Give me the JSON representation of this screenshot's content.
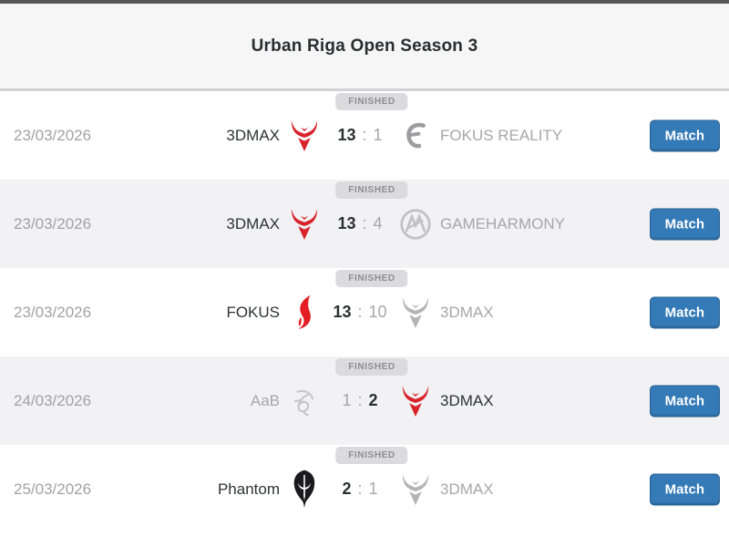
{
  "header": {
    "title": "Urban Riga Open Season 3"
  },
  "labels": {
    "finished": "FINISHED",
    "match": "Match"
  },
  "colors": {
    "accent_blue": "#337ab7",
    "accent_blue_border": "#286090",
    "winner_text": "#2f3136",
    "loser_text": "#a7a7a9",
    "badge_bg": "#dbdbdd",
    "badge_text": "#8e8e91",
    "devil_red": "#d9232b",
    "logo_gray": "#b4b4b6",
    "header_bg": "#f6f6f7",
    "alt_row_bg": "#f2f2f4"
  },
  "rows": [
    {
      "date": "23/03/2026",
      "team1": {
        "name": "3DMAX",
        "icon": "devil-red",
        "winner": true
      },
      "score1": "13",
      "score2": "1",
      "team2": {
        "name": "FOKUS REALITY",
        "icon": "fokus-gray",
        "winner": false
      },
      "status": "FINISHED"
    },
    {
      "date": "23/03/2026",
      "team1": {
        "name": "3DMAX",
        "icon": "devil-red",
        "winner": true
      },
      "score1": "13",
      "score2": "4",
      "team2": {
        "name": "GAMEHARMONY",
        "icon": "gameharmony-gray",
        "winner": false
      },
      "status": "FINISHED"
    },
    {
      "date": "23/03/2026",
      "team1": {
        "name": "FOKUS",
        "icon": "fokus-red",
        "winner": true
      },
      "score1": "13",
      "score2": "10",
      "team2": {
        "name": "3DMAX",
        "icon": "devil-gray",
        "winner": false
      },
      "status": "FINISHED"
    },
    {
      "date": "24/03/2026",
      "team1": {
        "name": "AaB",
        "icon": "aab-gray",
        "winner": false
      },
      "score1": "1",
      "score2": "2",
      "team2": {
        "name": "3DMAX",
        "icon": "devil-red",
        "winner": true
      },
      "status": "FINISHED"
    },
    {
      "date": "25/03/2026",
      "team1": {
        "name": "Phantom",
        "icon": "phantom-black",
        "winner": true
      },
      "score1": "2",
      "score2": "1",
      "team2": {
        "name": "3DMAX",
        "icon": "devil-gray",
        "winner": false
      },
      "status": "FINISHED"
    }
  ]
}
